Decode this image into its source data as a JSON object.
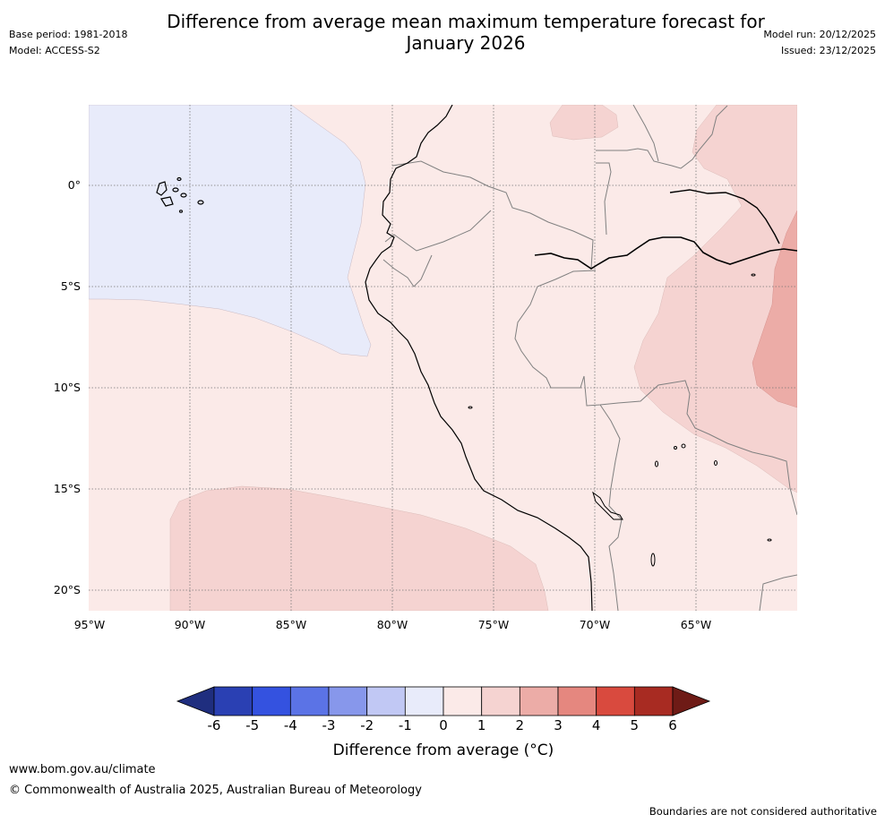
{
  "header": {
    "title_line1": "Difference from average mean maximum temperature forecast for",
    "title_line2": "January 2026",
    "base_period": "Base period: 1981-2018",
    "model": "Model: ACCESS-S2",
    "model_run": "Model run: 20/12/2025",
    "issued": "Issued: 23/12/2025"
  },
  "map": {
    "lat_labels": [
      "0°",
      "5°S",
      "10°S",
      "15°S",
      "20°S"
    ],
    "lon_labels": [
      "95°W",
      "90°W",
      "85°W",
      "80°W",
      "75°W",
      "70°W",
      "65°W"
    ]
  },
  "colorbar": {
    "ticks": [
      "-6",
      "-5",
      "-4",
      "-3",
      "-2",
      "-1",
      "0",
      "1",
      "2",
      "3",
      "4",
      "5",
      "6"
    ],
    "colors": [
      "#1f2e7f",
      "#2a40b3",
      "#3452e0",
      "#5b73e6",
      "#8797eb",
      "#c1c8f4",
      "#e8ebfa",
      "#fbeae8",
      "#f5d3d1",
      "#ecaca7",
      "#e5877f",
      "#d94a3e",
      "#a82b22",
      "#6e1b16"
    ],
    "label": "Difference from average (°C)"
  },
  "footer": {
    "url": "www.bom.gov.au/climate",
    "copyright": "© Commonwealth of Australia 2025, Australian Bureau of Meteorology",
    "disclaimer": "Boundaries are not considered authoritative"
  }
}
